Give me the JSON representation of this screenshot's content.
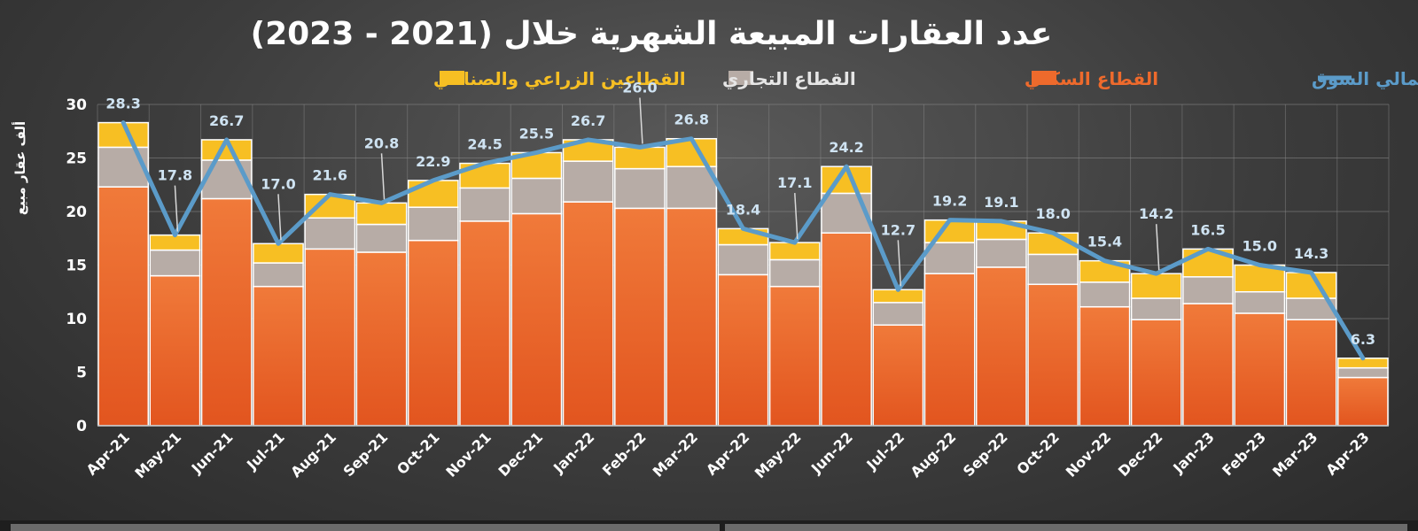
{
  "chart_data": {
    "type": "bar",
    "title": "عدد العقارات المبيعة الشهرية خلال (2021 - 2023)",
    "ylabel": "ألف عقار مبيع",
    "ylim": [
      0,
      30
    ],
    "yticks": [
      "0",
      "5",
      "10",
      "15",
      "20",
      "25",
      "30"
    ],
    "grid": true,
    "legend_position": "top",
    "categories": [
      "Apr-21",
      "May-21",
      "Jun-21",
      "Jul-21",
      "Aug-21",
      "Sep-21",
      "Oct-21",
      "Nov-21",
      "Dec-21",
      "Jan-22",
      "Feb-22",
      "Mar-22",
      "Apr-22",
      "May-22",
      "Jun-22",
      "Jul-22",
      "Aug-22",
      "Sep-22",
      "Oct-22",
      "Nov-22",
      "Dec-22",
      "Jan-23",
      "Feb-23",
      "Mar-23",
      "Apr-23"
    ],
    "series": [
      {
        "name": "القطاع السكني",
        "type": "bar-stacked",
        "color": "#ee6a2c",
        "values": [
          22.3,
          14.0,
          21.2,
          13.0,
          16.5,
          16.2,
          17.3,
          19.1,
          19.8,
          20.9,
          20.3,
          20.3,
          14.1,
          13.0,
          18.0,
          9.4,
          14.2,
          14.8,
          13.2,
          11.1,
          9.9,
          11.4,
          10.5,
          9.9,
          4.5
        ]
      },
      {
        "name": "القطاع التجاري",
        "type": "bar-stacked",
        "color": "#b7aca6",
        "values": [
          3.7,
          2.4,
          3.6,
          2.2,
          2.9,
          2.6,
          3.1,
          3.1,
          3.3,
          3.8,
          3.7,
          3.9,
          2.8,
          2.5,
          3.7,
          2.1,
          2.9,
          2.6,
          2.8,
          2.3,
          2.0,
          2.5,
          2.0,
          2.0,
          0.9
        ]
      },
      {
        "name": "القطاعين الزراعي والصناعي",
        "type": "bar-stacked",
        "color": "#f7bf23",
        "values": [
          2.3,
          1.4,
          1.9,
          1.8,
          2.2,
          2.0,
          2.5,
          2.3,
          2.4,
          2.0,
          2.0,
          2.6,
          1.5,
          1.6,
          2.5,
          1.2,
          2.1,
          1.7,
          2.0,
          2.0,
          2.3,
          2.6,
          2.5,
          2.4,
          0.9
        ]
      },
      {
        "name": "إجمالي السوق",
        "type": "line",
        "color": "#5b9bc9",
        "values": [
          28.3,
          17.8,
          26.7,
          17.0,
          21.6,
          20.8,
          22.9,
          24.5,
          25.5,
          26.7,
          26.0,
          26.8,
          18.4,
          17.1,
          24.2,
          12.7,
          19.2,
          19.1,
          18.0,
          15.4,
          14.2,
          16.5,
          15.0,
          14.3,
          6.3
        ],
        "labels": [
          "28.3",
          "17.8",
          "26.7",
          "17.0",
          "21.6",
          "20.8",
          "22.9",
          "24.5",
          "25.5",
          "26.7",
          "26.0",
          "26.8",
          "18.4",
          "17.1",
          "24.2",
          "12.7",
          "19.2",
          "19.1",
          "18.0",
          "15.4",
          "14.2",
          "16.5",
          "15.0",
          "14.3",
          "6.3"
        ]
      }
    ]
  }
}
